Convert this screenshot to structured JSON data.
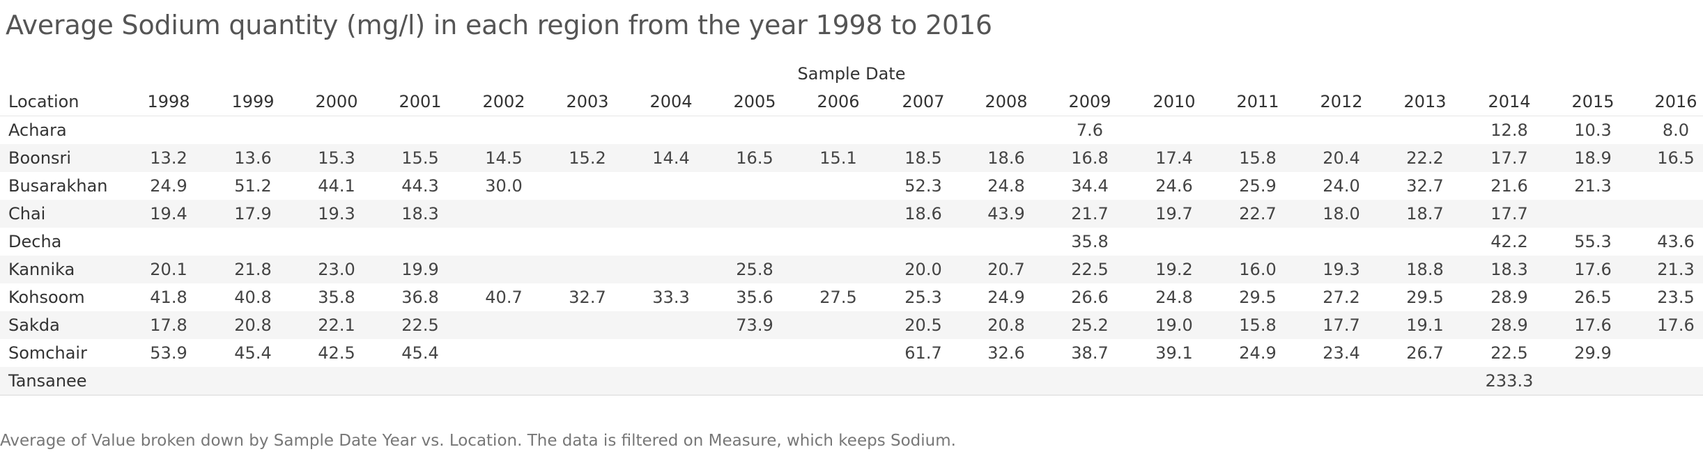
{
  "title": "Average Sodium quantity (mg/l) in each region from the year 1998 to 2016",
  "caption": "Average of Value broken down by Sample Date Year vs. Location. The data is filtered on Measure, which keeps Sodium.",
  "chart_data": {
    "type": "table",
    "column_group_label": "Sample Date",
    "row_header_label": "Location",
    "columns": [
      "1998",
      "1999",
      "2000",
      "2001",
      "2002",
      "2003",
      "2004",
      "2005",
      "2006",
      "2007",
      "2008",
      "2009",
      "2010",
      "2011",
      "2012",
      "2013",
      "2014",
      "2015",
      "2016"
    ],
    "rows": [
      {
        "location": "Achara",
        "values": [
          "",
          "",
          "",
          "",
          "",
          "",
          "",
          "",
          "",
          "",
          "",
          "7.6",
          "",
          "",
          "",
          "",
          "12.8",
          "10.3",
          "8.0"
        ]
      },
      {
        "location": "Boonsri",
        "values": [
          "13.2",
          "13.6",
          "15.3",
          "15.5",
          "14.5",
          "15.2",
          "14.4",
          "16.5",
          "15.1",
          "18.5",
          "18.6",
          "16.8",
          "17.4",
          "15.8",
          "20.4",
          "22.2",
          "17.7",
          "18.9",
          "16.5"
        ]
      },
      {
        "location": "Busarakhan",
        "values": [
          "24.9",
          "51.2",
          "44.1",
          "44.3",
          "30.0",
          "",
          "",
          "",
          "",
          "52.3",
          "24.8",
          "34.4",
          "24.6",
          "25.9",
          "24.0",
          "32.7",
          "21.6",
          "21.3",
          ""
        ]
      },
      {
        "location": "Chai",
        "values": [
          "19.4",
          "17.9",
          "19.3",
          "18.3",
          "",
          "",
          "",
          "",
          "",
          "18.6",
          "43.9",
          "21.7",
          "19.7",
          "22.7",
          "18.0",
          "18.7",
          "17.7",
          "",
          ""
        ]
      },
      {
        "location": "Decha",
        "values": [
          "",
          "",
          "",
          "",
          "",
          "",
          "",
          "",
          "",
          "",
          "",
          "35.8",
          "",
          "",
          "",
          "",
          "42.2",
          "55.3",
          "43.6"
        ]
      },
      {
        "location": "Kannika",
        "values": [
          "20.1",
          "21.8",
          "23.0",
          "19.9",
          "",
          "",
          "",
          "25.8",
          "",
          "20.0",
          "20.7",
          "22.5",
          "19.2",
          "16.0",
          "19.3",
          "18.8",
          "18.3",
          "17.6",
          "21.3"
        ]
      },
      {
        "location": "Kohsoom",
        "values": [
          "41.8",
          "40.8",
          "35.8",
          "36.8",
          "40.7",
          "32.7",
          "33.3",
          "35.6",
          "27.5",
          "25.3",
          "24.9",
          "26.6",
          "24.8",
          "29.5",
          "27.2",
          "29.5",
          "28.9",
          "26.5",
          "23.5"
        ]
      },
      {
        "location": "Sakda",
        "values": [
          "17.8",
          "20.8",
          "22.1",
          "22.5",
          "",
          "",
          "",
          "73.9",
          "",
          "20.5",
          "20.8",
          "25.2",
          "19.0",
          "15.8",
          "17.7",
          "19.1",
          "28.9",
          "17.6",
          "17.6"
        ]
      },
      {
        "location": "Somchair",
        "values": [
          "53.9",
          "45.4",
          "42.5",
          "45.4",
          "",
          "",
          "",
          "",
          "",
          "61.7",
          "32.6",
          "38.7",
          "39.1",
          "24.9",
          "23.4",
          "26.7",
          "22.5",
          "29.9",
          ""
        ]
      },
      {
        "location": "Tansanee",
        "values": [
          "",
          "",
          "",
          "",
          "",
          "",
          "",
          "",
          "",
          "",
          "",
          "",
          "",
          "",
          "",
          "",
          "233.3",
          "",
          ""
        ]
      }
    ]
  }
}
